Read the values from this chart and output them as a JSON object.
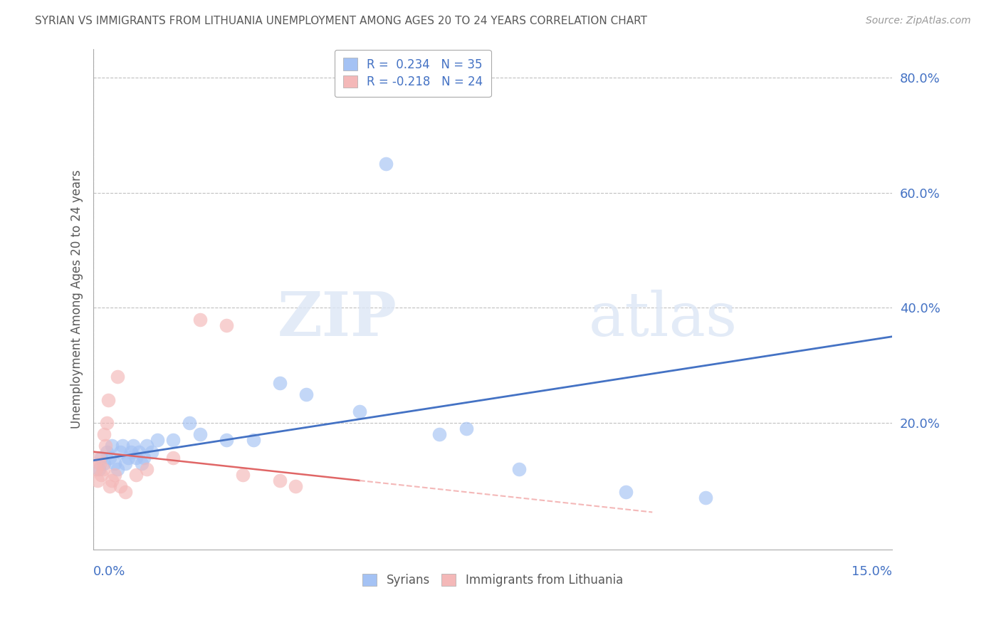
{
  "title": "SYRIAN VS IMMIGRANTS FROM LITHUANIA UNEMPLOYMENT AMONG AGES 20 TO 24 YEARS CORRELATION CHART",
  "source": "Source: ZipAtlas.com",
  "ylabel": "Unemployment Among Ages 20 to 24 years",
  "xlim": [
    0.0,
    15.0
  ],
  "ylim": [
    -2.0,
    85.0
  ],
  "ytick_vals": [
    20,
    40,
    60,
    80
  ],
  "ytick_labels": [
    "20.0%",
    "40.0%",
    "60.0%",
    "80.0%"
  ],
  "watermark_zip": "ZIP",
  "watermark_atlas": "atlas",
  "legend_syrian": "R =  0.234   N = 35",
  "legend_lith": "R = -0.218   N = 24",
  "legend_label_syrian": "Syrians",
  "legend_label_lith": "Immigrants from Lithuania",
  "syrian_color": "#a4c2f4",
  "lith_color": "#f4b8b8",
  "syrian_line_color": "#4472c4",
  "lith_line_color": "#e06666",
  "lith_line_dash_color": "#f4b8b8",
  "background_color": "#ffffff",
  "grid_color": "#c0c0c0",
  "title_color": "#595959",
  "axis_label_color": "#595959",
  "tick_color": "#4472c4",
  "syrian_data_x": [
    0.1,
    0.15,
    0.2,
    0.25,
    0.3,
    0.35,
    0.4,
    0.45,
    0.5,
    0.55,
    0.6,
    0.65,
    0.7,
    0.75,
    0.8,
    0.85,
    0.9,
    0.95,
    1.0,
    1.1,
    1.2,
    1.5,
    1.8,
    2.0,
    2.5,
    3.0,
    3.5,
    4.0,
    5.0,
    5.5,
    6.5,
    7.0,
    8.0,
    10.0,
    11.5
  ],
  "syrian_data_y": [
    12,
    14,
    13,
    15,
    14,
    16,
    13,
    12,
    15,
    16,
    13,
    14,
    15,
    16,
    14,
    15,
    13,
    14,
    16,
    15,
    17,
    17,
    20,
    18,
    17,
    17,
    27,
    25,
    22,
    65,
    18,
    19,
    12,
    8,
    7
  ],
  "lith_data_x": [
    0.05,
    0.08,
    0.1,
    0.12,
    0.15,
    0.18,
    0.2,
    0.22,
    0.25,
    0.28,
    0.3,
    0.35,
    0.4,
    0.45,
    0.5,
    0.6,
    0.8,
    1.0,
    1.5,
    2.0,
    2.5,
    2.8,
    3.5,
    3.8
  ],
  "lith_data_y": [
    12,
    10,
    14,
    13,
    11,
    12,
    18,
    16,
    20,
    24,
    9,
    10,
    11,
    28,
    9,
    8,
    11,
    12,
    14,
    38,
    37,
    11,
    10,
    9
  ],
  "syrian_trend_x0": 0.0,
  "syrian_trend_y0": 13.5,
  "syrian_trend_x1": 15.0,
  "syrian_trend_y1": 35.0,
  "lith_trend_x0": 0.0,
  "lith_trend_y0": 15.0,
  "lith_trend_x1": 5.0,
  "lith_trend_y1": 10.0,
  "lith_dash_x0": 5.0,
  "lith_dash_y0": 10.0,
  "lith_dash_x1": 10.5,
  "lith_dash_y1": 4.5
}
